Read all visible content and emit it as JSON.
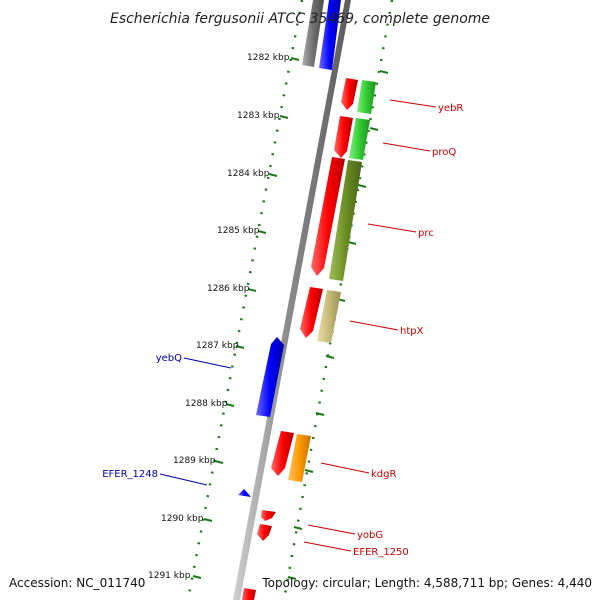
{
  "title": "Escherichia fergusonii ATCC 35469, complete genome",
  "accession": "Accession: NC_011740",
  "summary": "Topology: circular; Length: 4,588,711 bp; Genes: 4,440",
  "colors": {
    "backbone": "#8c8c8c",
    "tick": "#1a7a1a",
    "forward_label": "#cc0000",
    "reverse_label": "#0000aa"
  },
  "ticks": [
    "1282 kbp",
    "1283 kbp",
    "1284 kbp",
    "1285 kbp",
    "1286 kbp",
    "1287 kbp",
    "1288 kbp",
    "1289 kbp",
    "1290 kbp",
    "1291 kbp"
  ],
  "labels": {
    "yebR": "yebR",
    "proQ": "proQ",
    "prc": "prc",
    "htpX": "htpX",
    "yebQ": "yebQ",
    "kdgR": "kdgR",
    "EFER_1248": "EFER_1248",
    "yobG": "yobG",
    "EFER_1250": "EFER_1250"
  }
}
